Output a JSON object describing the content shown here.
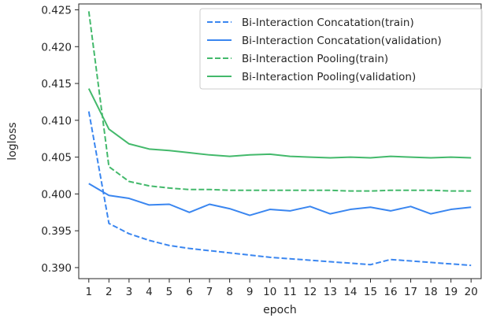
{
  "chart_data": {
    "type": "line",
    "title": "",
    "xlabel": "epoch",
    "ylabel": "logloss",
    "xlim": [
      0.5,
      20.5
    ],
    "ylim": [
      0.3885,
      0.4258
    ],
    "x": [
      1,
      2,
      3,
      4,
      5,
      6,
      7,
      8,
      9,
      10,
      11,
      12,
      13,
      14,
      15,
      16,
      17,
      18,
      19,
      20
    ],
    "x_ticks": [
      "1",
      "2",
      "3",
      "4",
      "5",
      "6",
      "7",
      "8",
      "9",
      "10",
      "11",
      "12",
      "13",
      "14",
      "15",
      "16",
      "17",
      "18",
      "19",
      "20"
    ],
    "y_ticks": [
      "0.390",
      "0.395",
      "0.400",
      "0.405",
      "0.410",
      "0.415",
      "0.420",
      "0.425"
    ],
    "y_tick_values": [
      0.39,
      0.395,
      0.4,
      0.405,
      0.41,
      0.415,
      0.42,
      0.425
    ],
    "grid": false,
    "legend_position": "top-right",
    "series": [
      {
        "name": "Bi-Interaction Concatation(train)",
        "color": "#3a86f0",
        "dash": true,
        "values": [
          0.4112,
          0.396,
          0.3946,
          0.3937,
          0.393,
          0.3926,
          0.3923,
          0.392,
          0.3917,
          0.3914,
          0.3912,
          0.391,
          0.3908,
          0.3906,
          0.3904,
          0.3911,
          0.3909,
          0.3907,
          0.3905,
          0.3903
        ]
      },
      {
        "name": "Bi-Interaction Concatation(validation)",
        "color": "#3a86f0",
        "dash": false,
        "values": [
          0.4014,
          0.3998,
          0.3994,
          0.3985,
          0.3986,
          0.3975,
          0.3986,
          0.398,
          0.3971,
          0.3979,
          0.3977,
          0.3983,
          0.3973,
          0.3979,
          0.3982,
          0.3977,
          0.3983,
          0.3973,
          0.3979,
          0.3982
        ]
      },
      {
        "name": "Bi-Interaction Pooling(train)",
        "color": "#43b96b",
        "dash": true,
        "values": [
          0.4248,
          0.4037,
          0.4017,
          0.4011,
          0.4008,
          0.4006,
          0.4006,
          0.4005,
          0.4005,
          0.4005,
          0.4005,
          0.4005,
          0.4005,
          0.4004,
          0.4004,
          0.4005,
          0.4005,
          0.4005,
          0.4004,
          0.4004
        ]
      },
      {
        "name": "Bi-Interaction Pooling(validation)",
        "color": "#43b96b",
        "dash": false,
        "values": [
          0.4143,
          0.4088,
          0.4068,
          0.4061,
          0.4059,
          0.4056,
          0.4053,
          0.4051,
          0.4053,
          0.4054,
          0.4051,
          0.405,
          0.4049,
          0.405,
          0.4049,
          0.4051,
          0.405,
          0.4049,
          0.405,
          0.4049
        ]
      }
    ]
  }
}
